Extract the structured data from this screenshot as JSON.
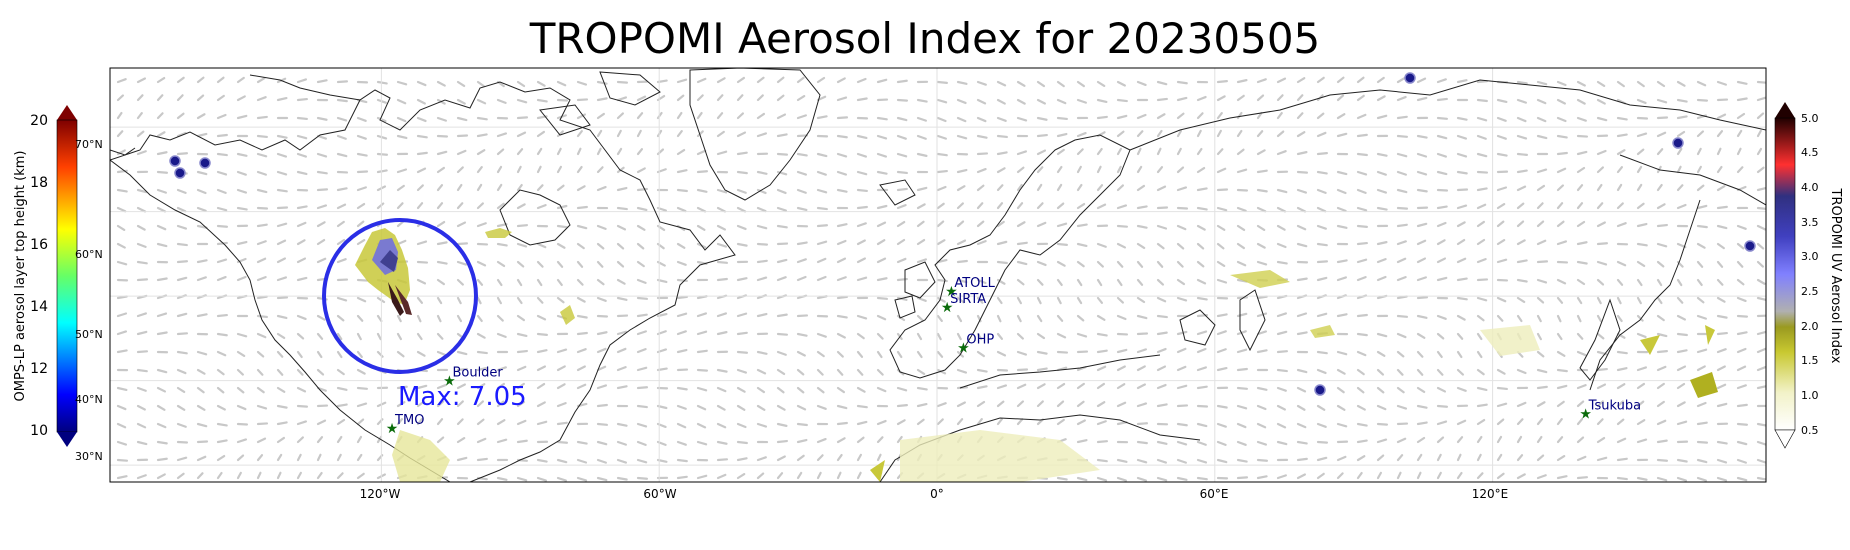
{
  "title": "TROPOMI Aerosol Index for 20230505",
  "left_colorbar": {
    "label": "OMPS-LP aerosol layer top height (km)",
    "ticks": [
      "20",
      "18",
      "16",
      "14",
      "12",
      "10"
    ]
  },
  "right_colorbar": {
    "label": "TROPOMI UV Aerosol Index",
    "ticks": [
      "5.0",
      "4.5",
      "4.0",
      "3.5",
      "3.0",
      "2.5",
      "2.0",
      "1.5",
      "1.0",
      "0.5"
    ]
  },
  "map": {
    "lon_labels": [
      "120°W",
      "60°W",
      "0°",
      "60°E",
      "120°E"
    ],
    "lat_labels": [
      "70°N",
      "60°N",
      "50°N",
      "40°N",
      "30°N"
    ],
    "max_label": "Max: 7.05",
    "stations": [
      {
        "name": "ATOLL",
        "lon": 3.1,
        "lat": 50.6
      },
      {
        "name": "SIRTA",
        "lon": 2.2,
        "lat": 48.7
      },
      {
        "name": "OHP",
        "lon": 5.7,
        "lat": 43.9
      },
      {
        "name": "Boulder",
        "lon": -105.3,
        "lat": 40.0
      },
      {
        "name": "TMO",
        "lon": -117.7,
        "lat": 34.4
      },
      {
        "name": "Tsukuba",
        "lon": 140.1,
        "lat": 36.1
      }
    ],
    "colors": {
      "circle": "#2a2ee6",
      "max_text": "#1a1aff",
      "station_marker": "#0a6b0a",
      "station_text": "#000080",
      "omps_point": "#1a1a8a"
    }
  }
}
